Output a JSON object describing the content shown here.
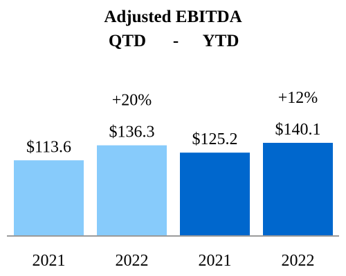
{
  "chart_data": {
    "type": "bar",
    "title": "Adjusted EBITDA",
    "subtitle": {
      "left": "QTD",
      "separator": "-",
      "right": "YTD"
    },
    "categories": [
      "2021",
      "2022",
      "2021",
      "2022"
    ],
    "values": [
      113.6,
      136.3,
      125.2,
      140.1
    ],
    "value_labels": [
      "$113.6",
      "$136.3",
      "$125.2",
      "$140.1"
    ],
    "change_labels": [
      "",
      "+20%",
      "",
      "+12%"
    ],
    "groups": [
      {
        "label": "QTD",
        "bar_indices": [
          0,
          1
        ]
      },
      {
        "label": "YTD",
        "bar_indices": [
          2,
          3
        ]
      }
    ],
    "colors": [
      "#87CBFB",
      "#87CBFB",
      "#0067CD",
      "#0067CD"
    ],
    "axis_color": "#9a9a9a",
    "grid": false,
    "xlabel": "",
    "ylabel": ""
  }
}
